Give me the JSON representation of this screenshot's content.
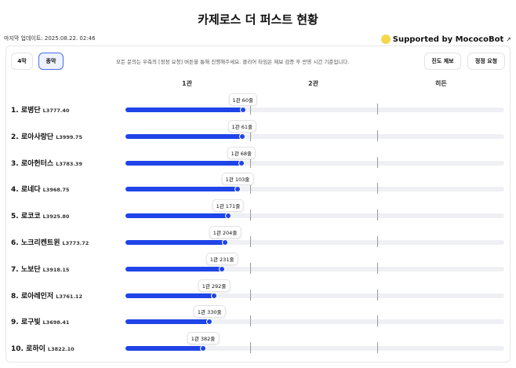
{
  "title": "카제로스 더 퍼스트 현황",
  "updated": "마지막 업데이트: 2025.08.22. 02:46",
  "support": "Supported by MococoBot",
  "tabs": [
    {
      "label": "4막"
    },
    {
      "label": "종막"
    }
  ],
  "notice": "모든 문의는 우측의 [정정 요청] 버튼을 통해 진행해주세요. 클리어 타임은 제보 검증 후 반영 시간 기준입니다.",
  "actions": {
    "report": "진도 제보",
    "correct": "정정 요청"
  },
  "stages": [
    "1관",
    "2관",
    "히든"
  ],
  "rows": [
    {
      "name": "1. 로병단",
      "level": "L3777.40",
      "progress": "1관 60줄",
      "fraction": 0.31
    },
    {
      "name": "2. 로아사랑단",
      "level": "L3999.75",
      "progress": "1관 61줄",
      "fraction": 0.308
    },
    {
      "name": "3. 로아헌터스",
      "level": "L3783.39",
      "progress": "1관 68줄",
      "fraction": 0.306
    },
    {
      "name": "4. 로네다",
      "level": "L3968.75",
      "progress": "1관 103줄",
      "fraction": 0.296
    },
    {
      "name": "5. 로코코",
      "level": "L3925.80",
      "progress": "1관 171줄",
      "fraction": 0.271
    },
    {
      "name": "6. 노크리켄트윈",
      "level": "L3773.72",
      "progress": "1관 204줄",
      "fraction": 0.263
    },
    {
      "name": "7. 노보단",
      "level": "L3918.15",
      "progress": "1관 231줄",
      "fraction": 0.255
    },
    {
      "name": "8. 로아레인저",
      "level": "L3761.12",
      "progress": "1관 292줄",
      "fraction": 0.234
    },
    {
      "name": "9. 로구빛",
      "level": "L3698.41",
      "progress": "1관 330줄",
      "fraction": 0.222
    },
    {
      "name": "10. 로하이",
      "level": "L3822.10",
      "progress": "1관 382줄",
      "fraction": 0.205
    }
  ]
}
